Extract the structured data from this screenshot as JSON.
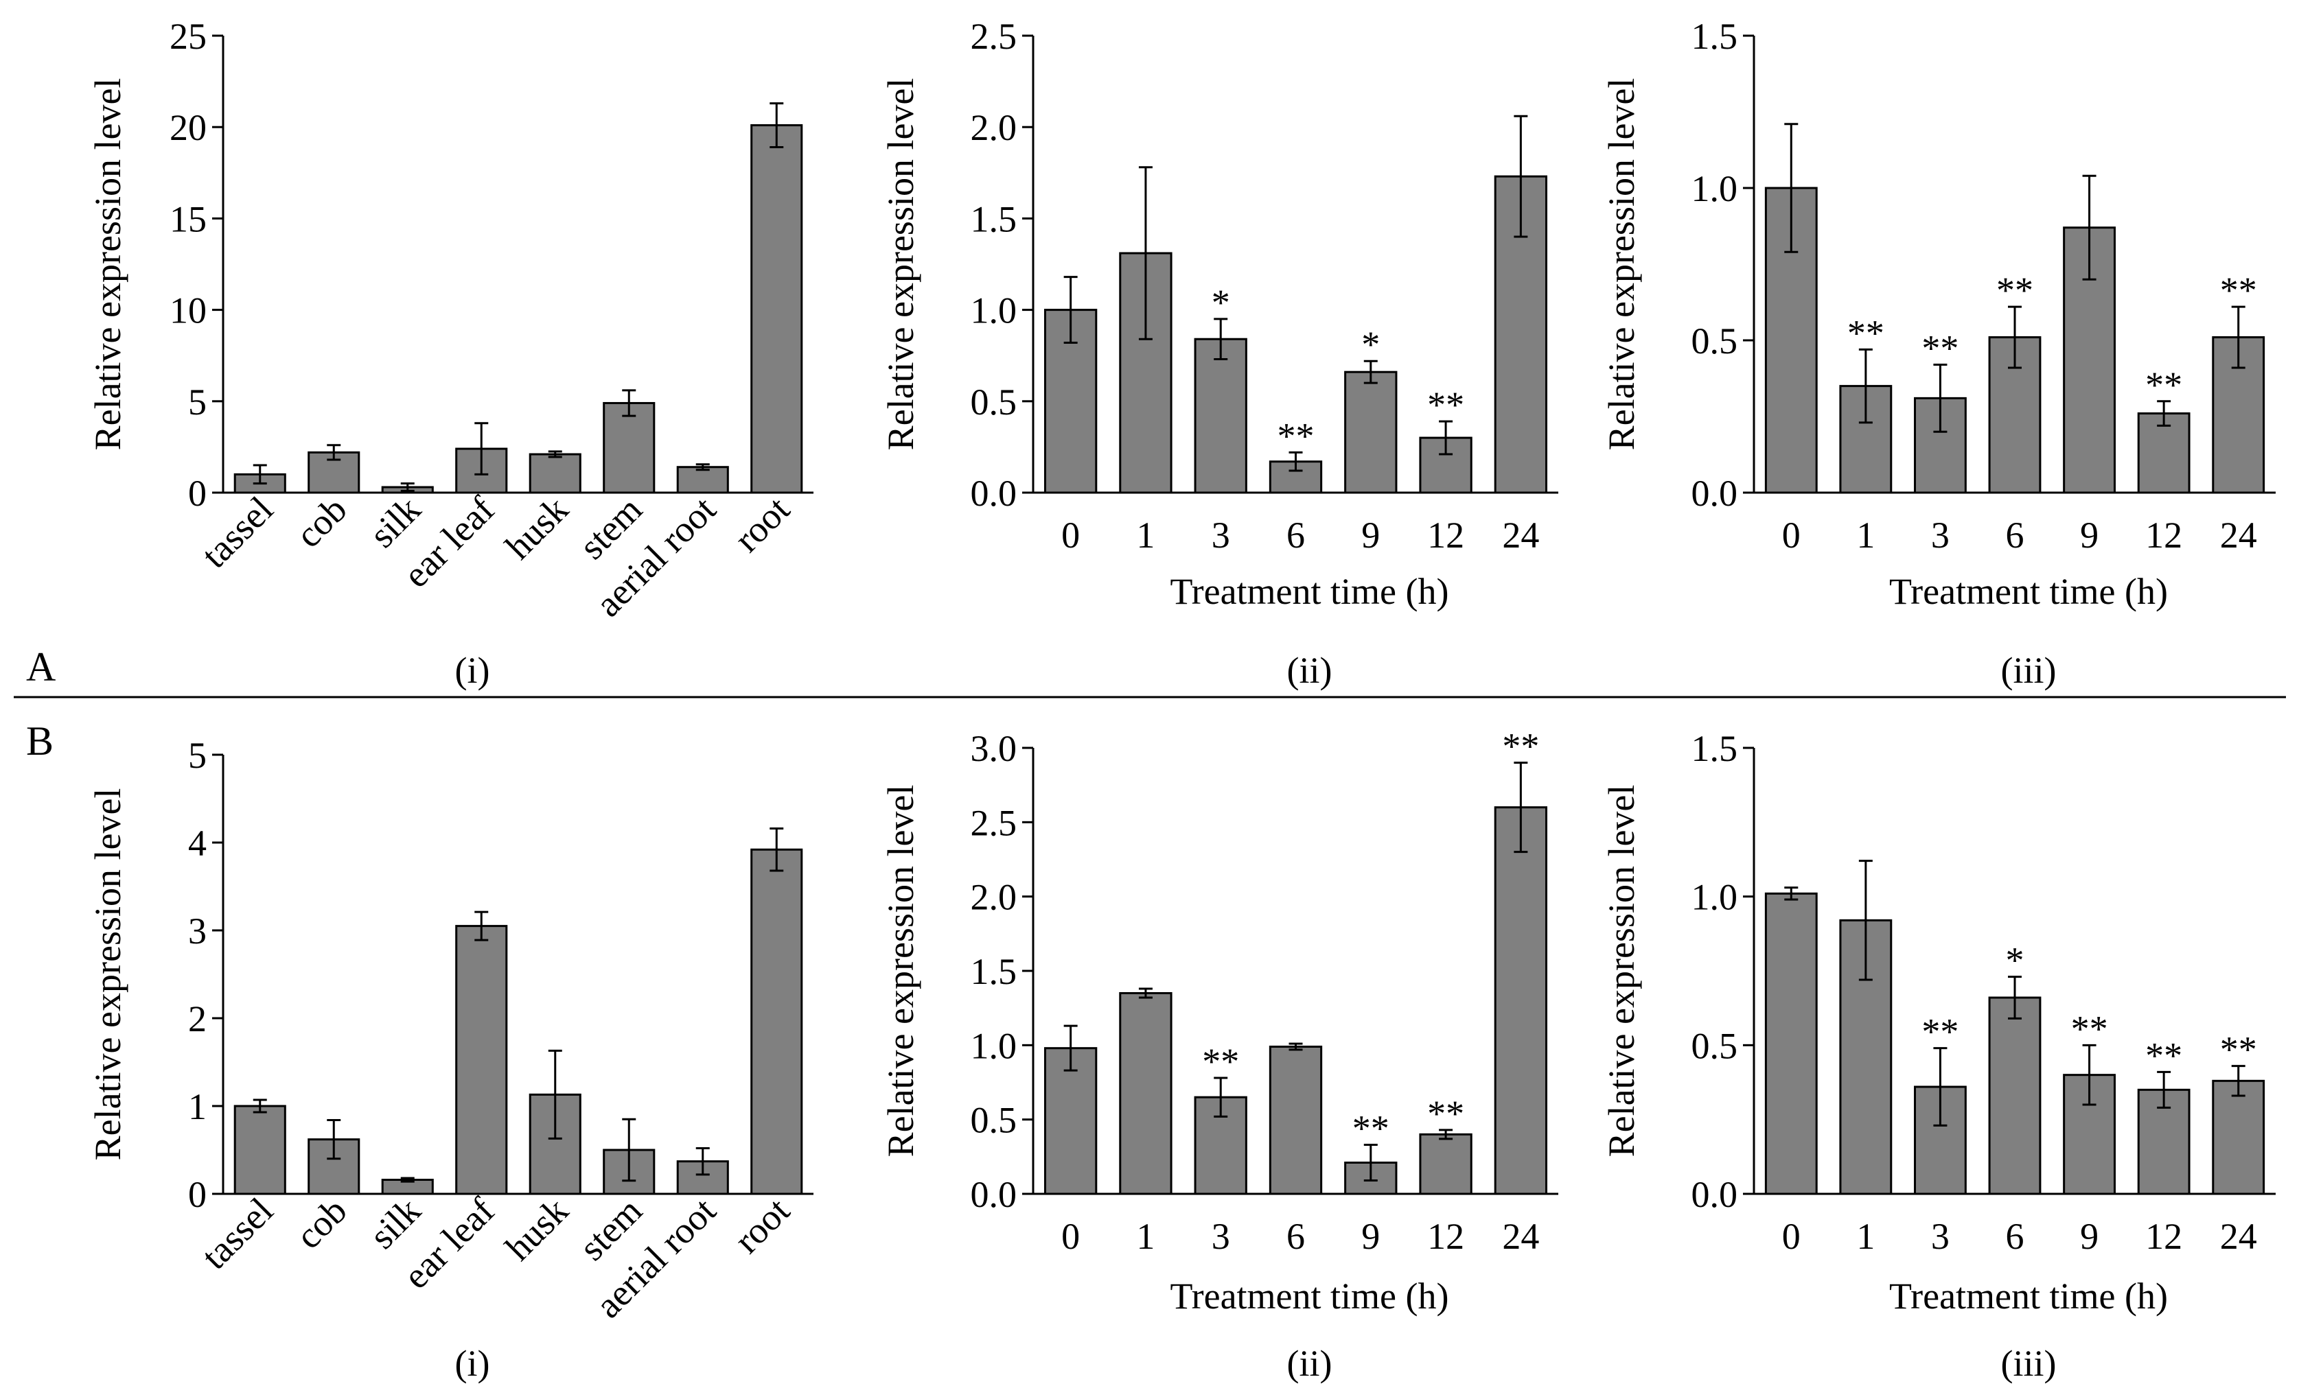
{
  "panel_labels": [
    "A",
    "B"
  ],
  "colors": {
    "bar": "#808080",
    "axis": "#000000",
    "background": "#ffffff"
  },
  "chart_data": [
    {
      "id": "A-i",
      "row": 0,
      "col": 0,
      "type": "bar",
      "sublabel": "(i)",
      "ylabel": "Relative expression level",
      "xlabel": "",
      "ylim": [
        0,
        25
      ],
      "yticks": [
        "0",
        "5",
        "10",
        "15",
        "20",
        "25"
      ],
      "rotate_xticks": true,
      "categories": [
        "tassel",
        "cob",
        "silk",
        "ear leaf",
        "husk",
        "stem",
        "aerial root",
        "root"
      ],
      "values": [
        1.0,
        2.2,
        0.3,
        2.4,
        2.1,
        4.9,
        1.4,
        20.1
      ],
      "errors": [
        0.5,
        0.4,
        0.2,
        1.4,
        0.15,
        0.7,
        0.15,
        1.2
      ],
      "significance": [
        "",
        "",
        "",
        "",
        "",
        "",
        "",
        ""
      ]
    },
    {
      "id": "A-ii",
      "row": 0,
      "col": 1,
      "type": "bar",
      "sublabel": "(ii)",
      "ylabel": "Relative expression level",
      "xlabel": "Treatment time (h)",
      "ylim": [
        0,
        2.5
      ],
      "yticks": [
        "0.0",
        "0.5",
        "1.0",
        "1.5",
        "2.0",
        "2.5"
      ],
      "rotate_xticks": false,
      "categories": [
        "0",
        "1",
        "3",
        "6",
        "9",
        "12",
        "24"
      ],
      "values": [
        1.0,
        1.31,
        0.84,
        0.17,
        0.66,
        0.3,
        1.73
      ],
      "errors": [
        0.18,
        0.47,
        0.11,
        0.05,
        0.06,
        0.09,
        0.33
      ],
      "significance": [
        "",
        "",
        "*",
        "**",
        "*",
        "**",
        ""
      ]
    },
    {
      "id": "A-iii",
      "row": 0,
      "col": 2,
      "type": "bar",
      "sublabel": "(iii)",
      "ylabel": "Relative expression level",
      "xlabel": "Treatment time (h)",
      "ylim": [
        0,
        1.5
      ],
      "yticks": [
        "0.0",
        "0.5",
        "1.0",
        "1.5"
      ],
      "rotate_xticks": false,
      "categories": [
        "0",
        "1",
        "3",
        "6",
        "9",
        "12",
        "24"
      ],
      "values": [
        1.0,
        0.35,
        0.31,
        0.51,
        0.87,
        0.26,
        0.51
      ],
      "errors": [
        0.21,
        0.12,
        0.11,
        0.1,
        0.17,
        0.04,
        0.1
      ],
      "significance": [
        "",
        "**",
        "**",
        "**",
        "",
        "**",
        "**"
      ]
    },
    {
      "id": "B-i",
      "row": 1,
      "col": 0,
      "type": "bar",
      "sublabel": "(i)",
      "ylabel": "Relative expression level",
      "xlabel": "",
      "ylim": [
        0,
        5
      ],
      "yticks": [
        "0",
        "1",
        "2",
        "3",
        "4",
        "5"
      ],
      "rotate_xticks": true,
      "categories": [
        "tassel",
        "cob",
        "silk",
        "ear leaf",
        "husk",
        "stem",
        "aerial root",
        "root"
      ],
      "values": [
        1.0,
        0.62,
        0.16,
        3.05,
        1.13,
        0.5,
        0.37,
        3.92
      ],
      "errors": [
        0.07,
        0.22,
        0.02,
        0.16,
        0.5,
        0.35,
        0.15,
        0.24
      ],
      "significance": [
        "",
        "",
        "",
        "",
        "",
        "",
        "",
        ""
      ]
    },
    {
      "id": "B-ii",
      "row": 1,
      "col": 1,
      "type": "bar",
      "sublabel": "(ii)",
      "ylabel": "Relative expression level",
      "xlabel": "Treatment time (h)",
      "ylim": [
        0,
        3
      ],
      "yticks": [
        "0.0",
        "0.5",
        "1.0",
        "1.5",
        "2.0",
        "2.5",
        "3.0"
      ],
      "rotate_xticks": false,
      "categories": [
        "0",
        "1",
        "3",
        "6",
        "9",
        "12",
        "24"
      ],
      "values": [
        0.98,
        1.35,
        0.65,
        0.99,
        0.21,
        0.4,
        2.6
      ],
      "errors": [
        0.15,
        0.03,
        0.13,
        0.02,
        0.12,
        0.03,
        0.3
      ],
      "significance": [
        "",
        "",
        "**",
        "",
        "**",
        "**",
        "**"
      ]
    },
    {
      "id": "B-iii",
      "row": 1,
      "col": 2,
      "type": "bar",
      "sublabel": "(iii)",
      "ylabel": "Relative expression level",
      "xlabel": "Treatment time (h)",
      "ylim": [
        0,
        1.5
      ],
      "yticks": [
        "0.0",
        "0.5",
        "1.0",
        "1.5"
      ],
      "rotate_xticks": false,
      "categories": [
        "0",
        "1",
        "3",
        "6",
        "9",
        "12",
        "24"
      ],
      "values": [
        1.01,
        0.92,
        0.36,
        0.66,
        0.4,
        0.35,
        0.38
      ],
      "errors": [
        0.02,
        0.2,
        0.13,
        0.07,
        0.1,
        0.06,
        0.05
      ],
      "significance": [
        "",
        "",
        "**",
        "*",
        "**",
        "**",
        "**"
      ]
    }
  ]
}
